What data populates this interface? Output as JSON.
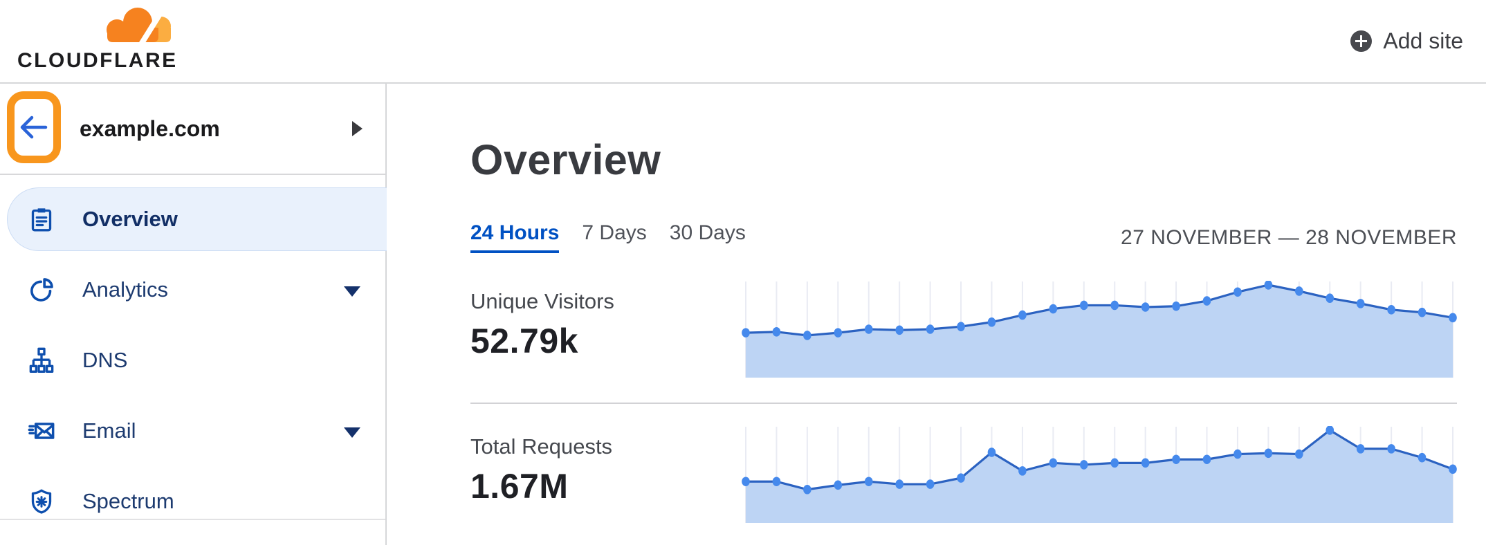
{
  "header": {
    "logo": {
      "text": "CLOUDFLARE",
      "icon": "cloudflare-cloud-logo"
    },
    "add_site": {
      "label": "Add site",
      "icon": "plus-circle-icon"
    }
  },
  "sidebar": {
    "back_button": {
      "icon": "arrow-left-icon"
    },
    "annotation": {
      "type": "highlight-box",
      "target": "back-button",
      "color": "#F8961D"
    },
    "site_name": "example.com",
    "site_expander_icon": "caret-right-icon",
    "items": [
      {
        "label": "Overview",
        "icon": "clipboard-icon",
        "active": true,
        "expandable": false
      },
      {
        "label": "Analytics",
        "icon": "pie-chart-icon",
        "active": false,
        "expandable": true
      },
      {
        "label": "DNS",
        "icon": "network-tree-icon",
        "active": false,
        "expandable": false
      },
      {
        "label": "Email",
        "icon": "email-icon",
        "active": false,
        "expandable": true
      },
      {
        "label": "Spectrum",
        "icon": "shield-icon",
        "active": false,
        "expandable": false
      }
    ]
  },
  "main": {
    "title": "Overview",
    "time_tabs": [
      {
        "label": "24 Hours",
        "active": true
      },
      {
        "label": "7 Days",
        "active": false
      },
      {
        "label": "30 Days",
        "active": false
      }
    ],
    "date_range": "27 NOVEMBER — 28 NOVEMBER",
    "metrics": [
      {
        "label": "Unique Visitors",
        "value": "52.79k"
      },
      {
        "label": "Total Requests",
        "value": "1.67M"
      }
    ]
  },
  "colors": {
    "brand_orange": "#F6821F",
    "brand_orange_light": "#FBAD41",
    "annotation_orange": "#F8961D",
    "link_blue": "#0051C3",
    "nav_text": "#1D3B70",
    "chart": {
      "grid": "#e9ebf3",
      "fill": "#bdd4f4",
      "line": "#2b62c1",
      "dot": "#4589ec"
    }
  },
  "chart_data": [
    {
      "type": "area",
      "title": "Unique Visitors",
      "total_label": "52.79k",
      "x_axis": "24 hourly points spanning 27 November - 28 November (no tick labels shown)",
      "y_axis": "unlabeled; values are relative, peak = 100",
      "grid": "vertical gridline at each point",
      "legend": "none",
      "values_relative": [
        46,
        47,
        43,
        46,
        50,
        49,
        50,
        53,
        58,
        66,
        73,
        77,
        77,
        75,
        76,
        82,
        92,
        100,
        93,
        85,
        79,
        72,
        69,
        63
      ]
    },
    {
      "type": "area",
      "title": "Total Requests",
      "total_label": "1.67M",
      "x_axis": "24 hourly points spanning 27 November - 28 November (no tick labels shown)",
      "y_axis": "unlabeled; values are relative, peak = 100",
      "grid": "vertical gridline at each point",
      "legend": "none",
      "values_relative": [
        42,
        42,
        33,
        38,
        42,
        39,
        39,
        46,
        75,
        54,
        63,
        61,
        63,
        63,
        67,
        67,
        73,
        74,
        73,
        100,
        79,
        79,
        69,
        56
      ]
    }
  ]
}
